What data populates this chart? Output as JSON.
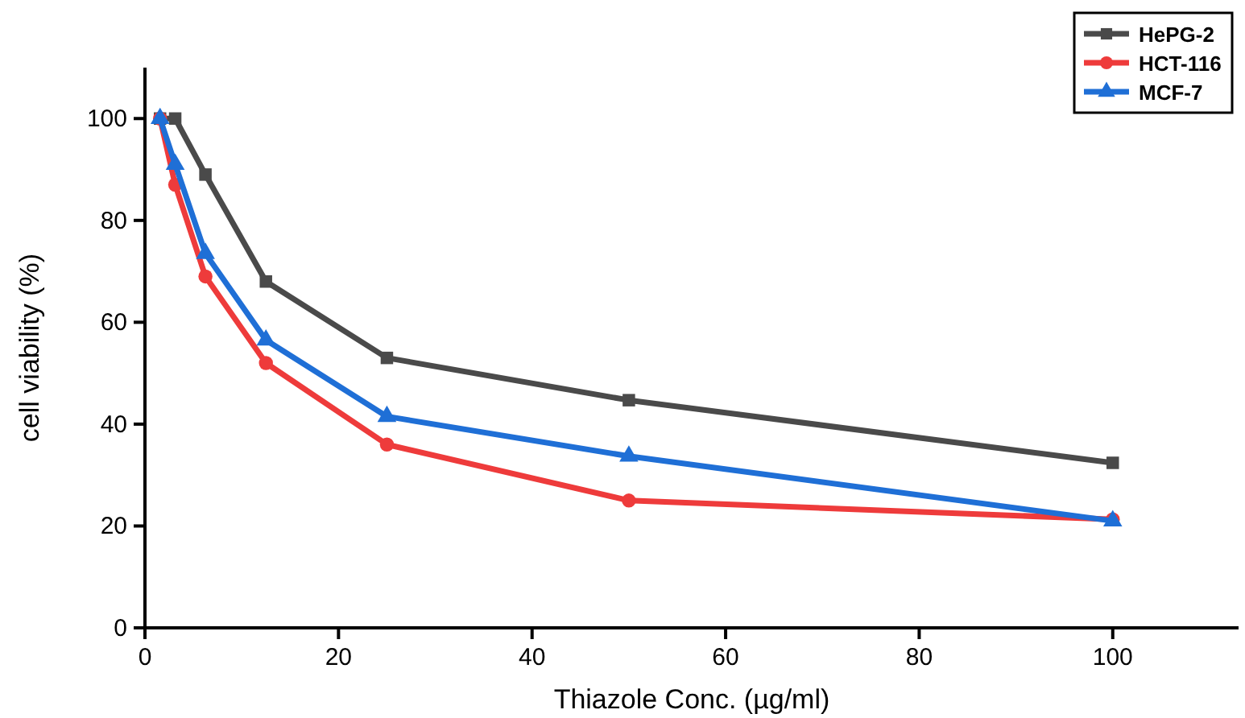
{
  "chart_data": {
    "type": "line",
    "xlabel": "Thiazole Conc. (µg/ml)",
    "ylabel": "cell viability (%)",
    "xlim": [
      0,
      113
    ],
    "xticks": [
      0,
      20,
      40,
      60,
      80,
      100
    ],
    "ylim": [
      0,
      110
    ],
    "yticks": [
      0,
      20,
      40,
      60,
      80,
      100
    ],
    "legend": "top right",
    "grid": false,
    "x": [
      1.56,
      3.125,
      6.25,
      12.5,
      25,
      50,
      100
    ],
    "series": [
      {
        "name": "HePG-2",
        "color": "#4a4a4a",
        "marker": "square",
        "values": [
          100,
          100,
          89,
          68,
          53,
          44.7,
          32.4
        ]
      },
      {
        "name": "HCT-116",
        "color": "#ee3b3b",
        "marker": "circle",
        "values": [
          100,
          87,
          69,
          52,
          36,
          25,
          21.3
        ]
      },
      {
        "name": "MCF-7",
        "color": "#1f6fd6",
        "marker": "triangle",
        "values": [
          100,
          91,
          73.5,
          56.5,
          41.5,
          33.7,
          21
        ]
      }
    ]
  }
}
